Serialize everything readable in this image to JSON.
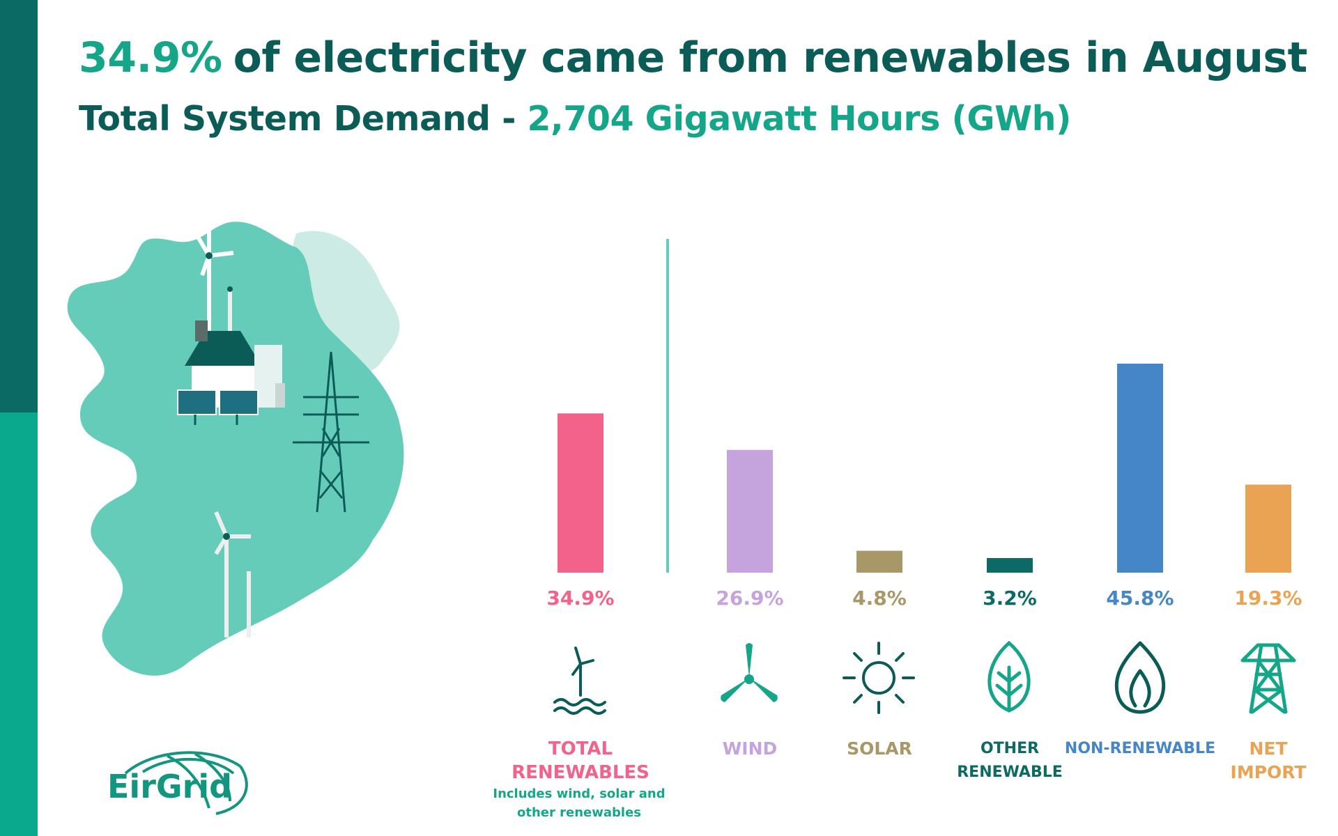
{
  "header": {
    "headline_pct": "34.9%",
    "headline_rest": "of electricity came from renewables in August",
    "subhead_prefix": "Total System Demand -",
    "subhead_value": "2,704",
    "subhead_unit": "Gigawatt Hours (GWh)"
  },
  "logo": {
    "text": "EirGrid"
  },
  "chart_data": {
    "type": "bar",
    "categories": [
      "TOTAL RENEWABLES",
      "WIND",
      "SOLAR",
      "OTHER RENEWABLE",
      "NON-RENEWABLE",
      "NET IMPORT"
    ],
    "values": [
      34.9,
      26.9,
      4.8,
      3.2,
      45.8,
      19.3
    ],
    "value_labels": [
      "34.9%",
      "26.9%",
      "4.8%",
      "3.2%",
      "45.8%",
      "19.3%"
    ],
    "colors": [
      "#f2628b",
      "#c5a3dc",
      "#a89868",
      "#0b6a63",
      "#4586c8",
      "#e9a352"
    ],
    "annotation": "Includes wind, solar and other renewables",
    "ylim": [
      0,
      45.8
    ],
    "grid": false,
    "legend": "none"
  },
  "icons": [
    "offshore-wind-icon",
    "wind-turbine-icon",
    "sun-icon",
    "leaf-icon",
    "flame-icon",
    "pylon-icon"
  ],
  "colors": {
    "dark_teal": "#0b5c57",
    "teal": "#15a68a",
    "map": "#66ccba",
    "map_light": "#cdebe5"
  }
}
